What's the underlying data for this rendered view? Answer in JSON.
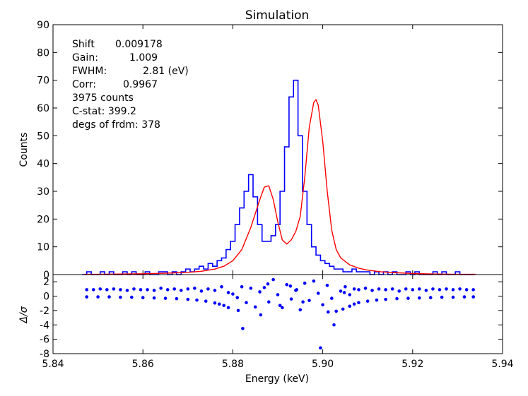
{
  "chart_data": [
    {
      "type": "line",
      "title": "Simulation",
      "xlabel": "",
      "ylabel": "Counts",
      "xlim": [
        5.84,
        5.94
      ],
      "ylim": [
        0,
        90
      ],
      "yticks": [
        0,
        10,
        20,
        30,
        40,
        50,
        60,
        70,
        80,
        90
      ],
      "xticks": [
        5.84,
        5.86,
        5.88,
        5.9,
        5.92,
        5.94
      ],
      "annotations": [
        {
          "label": "Shift",
          "value": "0.009178"
        },
        {
          "label": "Gain:",
          "value": "1.009"
        },
        {
          "label": "FWHM:",
          "value": "2.81 (eV)"
        },
        {
          "label": "Corr:",
          "value": "0.9967"
        },
        {
          "label": "3975 counts",
          "value": ""
        },
        {
          "label": "C-stat: 399.2",
          "value": ""
        },
        {
          "label": "degs of frdm: 378",
          "value": ""
        }
      ],
      "series": [
        {
          "name": "data histogram",
          "color": "#0000ff",
          "style": "steps",
          "x": [
            5.847,
            5.848,
            5.849,
            5.85,
            5.851,
            5.852,
            5.853,
            5.854,
            5.855,
            5.856,
            5.857,
            5.858,
            5.859,
            5.86,
            5.861,
            5.862,
            5.863,
            5.864,
            5.865,
            5.866,
            5.867,
            5.868,
            5.869,
            5.87,
            5.871,
            5.872,
            5.873,
            5.874,
            5.875,
            5.876,
            5.877,
            5.878,
            5.879,
            5.88,
            5.881,
            5.882,
            5.883,
            5.884,
            5.885,
            5.886,
            5.887,
            5.888,
            5.889,
            5.89,
            5.891,
            5.892,
            5.893,
            5.894,
            5.895,
            5.896,
            5.897,
            5.898,
            5.899,
            5.9,
            5.901,
            5.902,
            5.903,
            5.904,
            5.905,
            5.906,
            5.907,
            5.908,
            5.909,
            5.91,
            5.911,
            5.912,
            5.913,
            5.914,
            5.915,
            5.916,
            5.917,
            5.918,
            5.919,
            5.92,
            5.921,
            5.922,
            5.923,
            5.924,
            5.925,
            5.926,
            5.927,
            5.928,
            5.929,
            5.93,
            5.931,
            5.932,
            5.933
          ],
          "values": [
            0,
            1,
            0,
            0,
            1,
            0,
            1,
            0,
            0,
            1,
            0,
            1,
            0,
            0,
            1,
            0,
            0,
            1,
            1,
            0,
            1,
            0,
            1,
            2,
            1,
            2,
            3,
            2,
            4,
            3,
            5,
            6,
            9,
            12,
            18,
            24,
            30,
            36,
            28,
            18,
            12,
            12,
            14,
            18,
            30,
            46,
            64,
            70,
            50,
            30,
            18,
            10,
            7,
            5,
            4,
            3,
            2,
            2,
            1,
            1,
            2,
            1,
            1,
            1,
            0,
            1,
            0,
            1,
            0,
            1,
            0,
            0,
            1,
            0,
            1,
            0,
            0,
            0,
            1,
            0,
            1,
            0,
            0,
            1,
            0,
            0,
            0
          ]
        },
        {
          "name": "model fit",
          "color": "#ff0000",
          "style": "line",
          "x": [
            5.847,
            5.85,
            5.855,
            5.86,
            5.865,
            5.87,
            5.873,
            5.876,
            5.878,
            5.88,
            5.882,
            5.884,
            5.886,
            5.887,
            5.888,
            5.889,
            5.89,
            5.891,
            5.892,
            5.893,
            5.894,
            5.895,
            5.896,
            5.897,
            5.898,
            5.8985,
            5.899,
            5.9,
            5.901,
            5.902,
            5.903,
            5.904,
            5.906,
            5.908,
            5.91,
            5.913,
            5.916,
            5.92,
            5.925,
            5.93,
            5.934
          ],
          "values": [
            0.1,
            0.1,
            0.2,
            0.3,
            0.5,
            0.8,
            1.2,
            2.0,
            3.0,
            5.0,
            9.0,
            17.0,
            27.0,
            31.5,
            32.0,
            27.0,
            19.0,
            12.5,
            11.0,
            12.5,
            15.5,
            21.0,
            35.0,
            53.0,
            62.0,
            63.0,
            61.0,
            48.0,
            30.0,
            16.0,
            9.0,
            6.0,
            3.5,
            2.3,
            1.6,
            1.0,
            0.7,
            0.4,
            0.2,
            0.1,
            0.1
          ]
        }
      ]
    },
    {
      "type": "scatter",
      "title": "",
      "xlabel": "Energy (keV)",
      "ylabel": "Δ/σ",
      "xlim": [
        5.84,
        5.94
      ],
      "ylim": [
        -8,
        3
      ],
      "yticks": [
        -8,
        -6,
        -4,
        -2,
        0,
        2
      ],
      "xticks": [
        5.84,
        5.86,
        5.88,
        5.9,
        5.92,
        5.94
      ],
      "xtick_labels": [
        "5.84",
        "5.86",
        "5.88",
        "5.90",
        "5.92",
        "5.94"
      ],
      "series": [
        {
          "name": "residuals",
          "color": "#0000ff",
          "x": [
            5.8475,
            5.849,
            5.8505,
            5.852,
            5.8535,
            5.855,
            5.8565,
            5.858,
            5.8595,
            5.861,
            5.8625,
            5.864,
            5.8655,
            5.867,
            5.8685,
            5.87,
            5.8715,
            5.873,
            5.8745,
            5.876,
            5.8775,
            5.879,
            5.88,
            5.881,
            5.882,
            5.883,
            5.884,
            5.885,
            5.886,
            5.887,
            5.888,
            5.889,
            5.89,
            5.891,
            5.892,
            5.893,
            5.894,
            5.895,
            5.896,
            5.897,
            5.898,
            5.899,
            5.9,
            5.901,
            5.902,
            5.903,
            5.904,
            5.905,
            5.906,
            5.907,
            5.908,
            5.9095,
            5.911,
            5.9125,
            5.914,
            5.9155,
            5.917,
            5.9185,
            5.92,
            5.9215,
            5.923,
            5.9245,
            5.926,
            5.9275,
            5.929,
            5.9305,
            5.932,
            5.9335,
            5.8822,
            5.8905,
            5.8995,
            5.9025,
            5.8862,
            5.8942,
            5.8928,
            5.8812,
            5.8878,
            5.8956,
            5.9012,
            5.9048
          ],
          "values": [
            0.9,
            0.9,
            1.0,
            0.9,
            1.0,
            0.9,
            0.8,
            1.0,
            0.9,
            0.9,
            0.8,
            1.1,
            0.9,
            1.0,
            0.8,
            1.0,
            1.1,
            0.7,
            1.0,
            0.8,
            1.3,
            0.5,
            0.3,
            -0.2,
            1.3,
            -0.9,
            1.1,
            -1.5,
            0.6,
            1.2,
            -0.8,
            2.3,
            0.2,
            -1.6,
            1.6,
            -0.4,
            0.8,
            -1.9,
            1.8,
            -0.6,
            2.1,
            0.4,
            -1.2,
            1.5,
            -0.3,
            -2.1,
            0.7,
            1.3,
            0.2,
            1.0,
            0.9,
            1.1,
            0.8,
            1.0,
            0.9,
            1.0,
            0.7,
            1.0,
            0.9,
            1.0,
            0.8,
            1.0,
            0.9,
            1.0,
            0.9,
            1.0,
            0.9,
            0.9,
            -4.5,
            -1.3,
            -7.2,
            -4.0,
            -2.6,
            0.9,
            1.4,
            -2.0,
            1.7,
            -0.8,
            -2.2,
            0.5
          ]
        },
        {
          "name": "zero-count bins",
          "color": "#0000ff",
          "x": [
            5.8475,
            5.85,
            5.8525,
            5.855,
            5.8575,
            5.86,
            5.8625,
            5.865,
            5.8675,
            5.87,
            5.872,
            5.874,
            5.876,
            5.877,
            5.878,
            5.879,
            5.9045,
            5.906,
            5.907,
            5.908,
            5.91,
            5.912,
            5.914,
            5.9165,
            5.919,
            5.9215,
            5.924,
            5.9265,
            5.929,
            5.9315,
            5.9335
          ],
          "values": [
            -0.1,
            -0.1,
            -0.1,
            -0.15,
            -0.15,
            -0.2,
            -0.25,
            -0.3,
            -0.35,
            -0.45,
            -0.55,
            -0.7,
            -0.95,
            -1.1,
            -1.3,
            -1.6,
            -1.8,
            -1.4,
            -1.1,
            -0.9,
            -0.7,
            -0.55,
            -0.45,
            -0.35,
            -0.3,
            -0.25,
            -0.2,
            -0.15,
            -0.15,
            -0.1,
            -0.1
          ]
        }
      ]
    }
  ]
}
